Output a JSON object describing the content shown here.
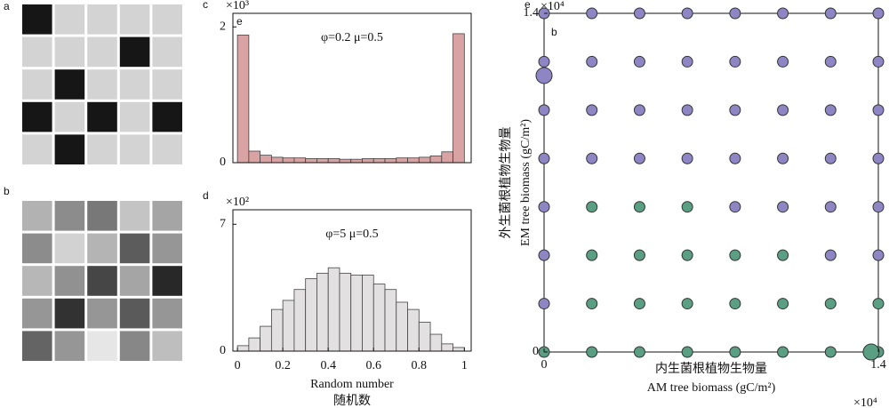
{
  "chart_data": [
    {
      "type": "heatmap",
      "label": "a",
      "values": [
        [
          22,
          211,
          211,
          211,
          211
        ],
        [
          211,
          211,
          211,
          22,
          211
        ],
        [
          211,
          22,
          211,
          211,
          211
        ],
        [
          22,
          211,
          22,
          211,
          22
        ],
        [
          211,
          22,
          211,
          211,
          211
        ]
      ]
    },
    {
      "type": "heatmap",
      "label": "b",
      "values": [
        [
          178,
          140,
          120,
          196,
          165
        ],
        [
          140,
          210,
          180,
          92,
          150
        ],
        [
          183,
          145,
          70,
          165,
          40
        ],
        [
          150,
          50,
          150,
          90,
          150
        ],
        [
          100,
          150,
          230,
          135,
          190
        ]
      ]
    },
    {
      "type": "histogram",
      "label": "c",
      "inner_label": "e",
      "y_multiplier": "×10³",
      "annotation": "φ=0.2 μ=0.5",
      "color": "#d9a3a3",
      "bins": [
        0,
        0.05,
        0.1,
        0.15,
        0.2,
        0.25,
        0.3,
        0.35,
        0.4,
        0.45,
        0.5,
        0.55,
        0.6,
        0.65,
        0.7,
        0.75,
        0.8,
        0.85,
        0.9,
        0.95,
        1
      ],
      "values": [
        1.88,
        0.17,
        0.11,
        0.08,
        0.07,
        0.07,
        0.06,
        0.06,
        0.06,
        0.05,
        0.05,
        0.06,
        0.06,
        0.06,
        0.07,
        0.07,
        0.08,
        0.1,
        0.16,
        1.9
      ],
      "xlim": [
        -0.02,
        1.03
      ],
      "ylim": [
        0,
        2.2
      ],
      "yticks": [
        0,
        2
      ]
    },
    {
      "type": "histogram",
      "label": "d",
      "y_multiplier": "×10²",
      "annotation": "φ=5    μ=0.5",
      "color": "#e2e0e0",
      "x_label": "Random number",
      "x_label_2": "随机数",
      "bins": [
        0,
        0.05,
        0.1,
        0.15,
        0.2,
        0.25,
        0.3,
        0.35,
        0.4,
        0.45,
        0.5,
        0.55,
        0.6,
        0.65,
        0.7,
        0.75,
        0.8,
        0.85,
        0.9,
        0.95,
        1
      ],
      "values": [
        0.3,
        0.73,
        1.37,
        2.3,
        2.8,
        3.4,
        4.0,
        4.3,
        4.6,
        4.3,
        4.2,
        4.2,
        3.7,
        3.4,
        2.7,
        2.3,
        1.6,
        0.93,
        0.4,
        0.2
      ],
      "xlim": [
        -0.02,
        1.03
      ],
      "ylim": [
        0,
        7.8
      ],
      "yticks": [
        0,
        7
      ],
      "xticks": [
        0,
        0.2,
        0.4,
        0.6,
        0.8,
        1
      ]
    },
    {
      "type": "scatter",
      "label": "e",
      "inner_label": "b",
      "x_multiplier": "×10⁴",
      "y_multiplier": "×10⁴",
      "x_label": "内生菌根植物生物量",
      "x_label_2": "AM tree biomass (gC/m²)",
      "y_label": "外生菌根植物生物量",
      "y_label_2": "EM tree biomass (gC/m²)",
      "xlim": [
        0,
        14000
      ],
      "ylim": [
        0,
        14000
      ],
      "xticks": [
        0,
        {
          "value": 14000,
          "label": "1.4"
        }
      ],
      "yticks": [
        0,
        {
          "value": 14000,
          "label": "1.4"
        }
      ],
      "series": [
        {
          "color": "#8e86c4",
          "marker_size": 6,
          "x": [
            0,
            2000,
            4000,
            6000,
            8000,
            10000,
            12000,
            14000,
            0,
            2000,
            4000,
            6000,
            8000,
            10000,
            12000,
            14000,
            0,
            2000,
            4000,
            6000,
            8000,
            10000,
            12000,
            14000,
            0,
            2000,
            4000,
            6000,
            8000,
            10000,
            12000,
            14000,
            0,
            8000,
            10000,
            12000,
            14000,
            0,
            12000,
            14000,
            0
          ],
          "values": [
            14000,
            14000,
            14000,
            14000,
            14000,
            14000,
            14000,
            14000,
            12000,
            12000,
            12000,
            12000,
            12000,
            12000,
            12000,
            12000,
            10000,
            10000,
            10000,
            10000,
            10000,
            10000,
            10000,
            10000,
            8000,
            8000,
            8000,
            8000,
            8000,
            8000,
            8000,
            8000,
            6000,
            6000,
            6000,
            6000,
            6000,
            4000,
            4000,
            4000,
            2000
          ]
        },
        {
          "color": "#5a9e84",
          "marker_size": 6,
          "x": [
            2000,
            4000,
            6000,
            2000,
            4000,
            6000,
            8000,
            10000,
            2000,
            4000,
            6000,
            8000,
            10000,
            12000,
            14000,
            0,
            2000,
            4000,
            6000,
            8000,
            10000,
            12000,
            14000
          ],
          "values": [
            6000,
            6000,
            6000,
            4000,
            4000,
            4000,
            4000,
            4000,
            2000,
            2000,
            2000,
            2000,
            2000,
            2000,
            2000,
            0,
            0,
            0,
            0,
            0,
            0,
            0,
            0
          ]
        },
        {
          "color": "#8e86c4",
          "marker_size": 9,
          "x": [
            0
          ],
          "values": [
            11430
          ]
        },
        {
          "color": "#5a9e84",
          "marker_size": 9,
          "x": [
            13700
          ],
          "values": [
            0
          ]
        }
      ]
    }
  ]
}
